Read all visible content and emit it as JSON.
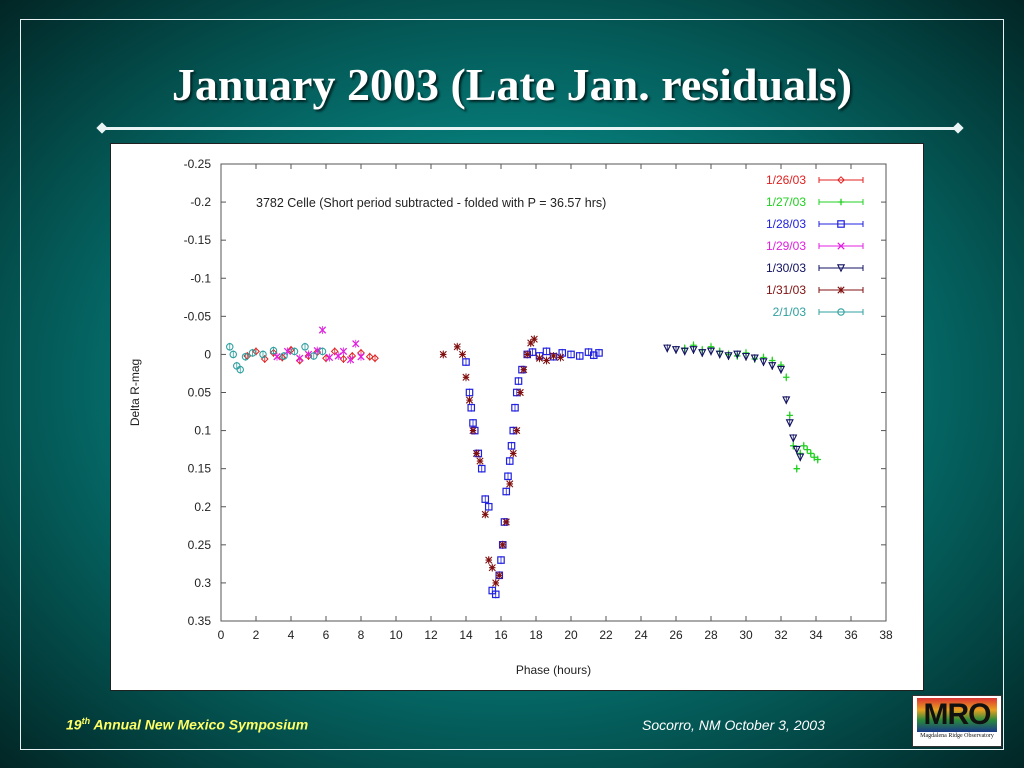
{
  "slide": {
    "title": "January 2003 (Late Jan. residuals)",
    "footer_left_prefix": "19",
    "footer_left_sup": "th",
    "footer_left_rest": " Annual New Mexico Symposium",
    "footer_right": "Socorro, NM October 3, 2003",
    "logo_text": "MRO",
    "logo_subtext": "Magdalena Ridge Observatory"
  },
  "colors": {
    "background": "#067c79",
    "footer_left": "#ffff66"
  },
  "chart_data": {
    "type": "scatter",
    "annotation": "3782 Celle (Short period subtracted - folded with P = 36.57 hrs)",
    "xlabel": "Phase (hours)",
    "ylabel": "Delta R-mag",
    "xlim": [
      0,
      38
    ],
    "ylim": [
      -0.25,
      0.35
    ],
    "y_inverted": true,
    "x_ticks": [
      "0",
      "2",
      "4",
      "6",
      "8",
      "10",
      "12",
      "14",
      "16",
      "18",
      "20",
      "22",
      "24",
      "26",
      "28",
      "30",
      "32",
      "34",
      "36",
      "38"
    ],
    "y_ticks": [
      "-0.25",
      "-0.2",
      "-0.15",
      "-0.1",
      "-0.05",
      "0",
      "0.05",
      "0.1",
      "0.15",
      "0.2",
      "0.25",
      "0.3",
      "0.35"
    ],
    "grid": false,
    "legend_position": "top-right",
    "series": [
      {
        "name": "1/26/03",
        "color": "#e02020",
        "marker": "diamond",
        "points": [
          [
            1.5,
            0.002
          ],
          [
            2.0,
            -0.004
          ],
          [
            2.5,
            0.006
          ],
          [
            3.0,
            -0.002
          ],
          [
            3.5,
            0.004
          ],
          [
            4.0,
            -0.006
          ],
          [
            4.5,
            0.008
          ],
          [
            5.0,
            0.002
          ],
          [
            5.5,
            -0.003
          ],
          [
            6.0,
            0.005
          ],
          [
            6.5,
            -0.004
          ],
          [
            7.0,
            0.006
          ],
          [
            7.5,
            0.002
          ],
          [
            8.0,
            -0.002
          ],
          [
            8.5,
            0.003
          ],
          [
            8.8,
            0.005
          ]
        ]
      },
      {
        "name": "1/27/03",
        "color": "#20d020",
        "marker": "plus",
        "points": [
          [
            26.5,
            -0.008
          ],
          [
            27.0,
            -0.012
          ],
          [
            27.5,
            -0.006
          ],
          [
            28.0,
            -0.01
          ],
          [
            28.5,
            -0.004
          ],
          [
            29.0,
            0.0
          ],
          [
            29.5,
            0.002
          ],
          [
            30.0,
            -0.002
          ],
          [
            30.5,
            0.006
          ],
          [
            31.0,
            0.004
          ],
          [
            31.5,
            0.008
          ],
          [
            32.0,
            0.014
          ],
          [
            32.3,
            0.03
          ],
          [
            32.5,
            0.08
          ],
          [
            32.7,
            0.12
          ],
          [
            32.9,
            0.15
          ],
          [
            33.1,
            0.13
          ],
          [
            33.3,
            0.12
          ],
          [
            33.5,
            0.125
          ],
          [
            33.7,
            0.13
          ],
          [
            33.9,
            0.135
          ],
          [
            34.1,
            0.138
          ]
        ]
      },
      {
        "name": "1/28/03",
        "color": "#2020e0",
        "marker": "square",
        "points": [
          [
            14.0,
            0.01
          ],
          [
            14.2,
            0.05
          ],
          [
            14.3,
            0.07
          ],
          [
            14.4,
            0.09
          ],
          [
            14.5,
            0.1
          ],
          [
            14.7,
            0.13
          ],
          [
            14.9,
            0.15
          ],
          [
            15.1,
            0.19
          ],
          [
            15.3,
            0.2
          ],
          [
            15.5,
            0.31
          ],
          [
            15.7,
            0.315
          ],
          [
            15.9,
            0.29
          ],
          [
            16.0,
            0.27
          ],
          [
            16.1,
            0.25
          ],
          [
            16.2,
            0.22
          ],
          [
            16.3,
            0.18
          ],
          [
            16.4,
            0.16
          ],
          [
            16.5,
            0.14
          ],
          [
            16.6,
            0.12
          ],
          [
            16.7,
            0.1
          ],
          [
            16.8,
            0.07
          ],
          [
            16.9,
            0.05
          ],
          [
            17.0,
            0.035
          ],
          [
            17.2,
            0.02
          ],
          [
            17.5,
            0.0
          ],
          [
            17.8,
            -0.003
          ],
          [
            18.2,
            0.002
          ],
          [
            18.6,
            -0.004
          ],
          [
            19.0,
            0.003
          ],
          [
            19.5,
            -0.002
          ],
          [
            20.0,
            0.0
          ],
          [
            20.5,
            0.002
          ],
          [
            21.0,
            -0.003
          ],
          [
            21.3,
            0.001
          ],
          [
            21.6,
            -0.002
          ]
        ]
      },
      {
        "name": "1/29/03",
        "color": "#e020e0",
        "marker": "x",
        "points": [
          [
            3.2,
            0.003
          ],
          [
            3.8,
            -0.004
          ],
          [
            4.5,
            0.005
          ],
          [
            5.0,
            0.0
          ],
          [
            5.5,
            -0.005
          ],
          [
            5.8,
            -0.032
          ],
          [
            6.2,
            0.004
          ],
          [
            6.7,
            0.002
          ],
          [
            7.0,
            -0.004
          ],
          [
            7.4,
            0.007
          ],
          [
            7.7,
            -0.014
          ],
          [
            8.0,
            0.003
          ]
        ]
      },
      {
        "name": "1/30/03",
        "color": "#101060",
        "marker": "triangle",
        "points": [
          [
            25.5,
            -0.008
          ],
          [
            26.0,
            -0.006
          ],
          [
            26.5,
            -0.004
          ],
          [
            27.0,
            -0.006
          ],
          [
            27.5,
            -0.002
          ],
          [
            28.0,
            -0.004
          ],
          [
            28.5,
            0.0
          ],
          [
            29.0,
            0.002
          ],
          [
            29.5,
            0.0
          ],
          [
            30.0,
            0.003
          ],
          [
            30.5,
            0.005
          ],
          [
            31.0,
            0.01
          ],
          [
            31.5,
            0.015
          ],
          [
            32.0,
            0.02
          ],
          [
            32.3,
            0.06
          ],
          [
            32.5,
            0.09
          ],
          [
            32.7,
            0.11
          ],
          [
            32.9,
            0.125
          ],
          [
            33.1,
            0.135
          ]
        ]
      },
      {
        "name": "1/31/03",
        "color": "#801010",
        "marker": "star",
        "points": [
          [
            12.7,
            0.0
          ],
          [
            13.5,
            -0.01
          ],
          [
            13.8,
            0.0
          ],
          [
            14.0,
            0.03
          ],
          [
            14.2,
            0.06
          ],
          [
            14.4,
            0.1
          ],
          [
            14.6,
            0.13
          ],
          [
            14.8,
            0.14
          ],
          [
            15.1,
            0.21
          ],
          [
            15.3,
            0.27
          ],
          [
            15.5,
            0.28
          ],
          [
            15.7,
            0.3
          ],
          [
            15.9,
            0.29
          ],
          [
            16.1,
            0.25
          ],
          [
            16.3,
            0.22
          ],
          [
            16.5,
            0.17
          ],
          [
            16.7,
            0.13
          ],
          [
            16.9,
            0.1
          ],
          [
            17.1,
            0.05
          ],
          [
            17.3,
            0.02
          ],
          [
            17.5,
            0.0
          ],
          [
            17.7,
            -0.015
          ],
          [
            17.9,
            -0.02
          ],
          [
            18.2,
            0.005
          ],
          [
            18.6,
            0.008
          ],
          [
            19.0,
            0.002
          ],
          [
            19.4,
            0.004
          ]
        ]
      },
      {
        "name": "2/1/03",
        "color": "#30a0a0",
        "marker": "circle",
        "points": [
          [
            0.5,
            -0.01
          ],
          [
            0.7,
            0.0
          ],
          [
            0.9,
            0.015
          ],
          [
            1.1,
            0.02
          ],
          [
            1.4,
            0.003
          ],
          [
            1.8,
            -0.002
          ],
          [
            2.4,
            0.0
          ],
          [
            3.0,
            -0.005
          ],
          [
            3.6,
            0.002
          ],
          [
            4.2,
            -0.004
          ],
          [
            4.8,
            -0.01
          ],
          [
            5.3,
            0.002
          ],
          [
            5.8,
            -0.004
          ]
        ]
      }
    ]
  }
}
